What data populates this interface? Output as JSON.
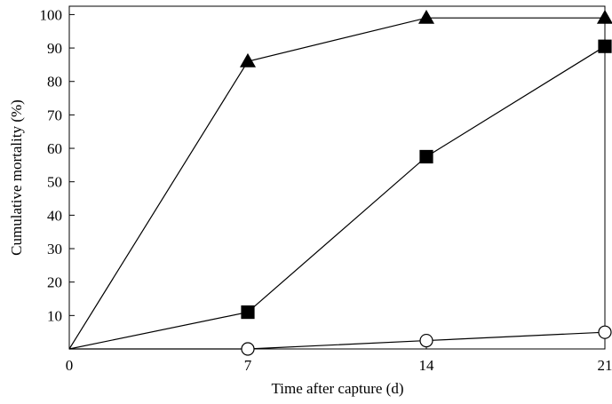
{
  "chart_data": {
    "type": "line",
    "xlabel": "Time after capture (d)",
    "ylabel": "Cumulative mortality (%)",
    "x": [
      0,
      7,
      14,
      21
    ],
    "series": [
      {
        "color": "#000000",
        "marker": "triangle",
        "marker_fill": "#000000",
        "values": [
          0,
          86,
          99,
          99
        ]
      },
      {
        "color": "#000000",
        "marker": "square",
        "marker_fill": "#000000",
        "values": [
          0,
          11,
          57.5,
          90.5
        ]
      },
      {
        "color": "#000000",
        "marker": "circle",
        "marker_fill": "#ffffff",
        "values": [
          0,
          0,
          2.5,
          5
        ]
      }
    ],
    "xlim": [
      0,
      21
    ],
    "ylim": [
      0,
      102.5
    ],
    "xticks": [
      0,
      7,
      14,
      21
    ],
    "yticks": [
      10,
      20,
      30,
      40,
      50,
      60,
      70,
      80,
      90,
      100
    ],
    "grid": false
  }
}
